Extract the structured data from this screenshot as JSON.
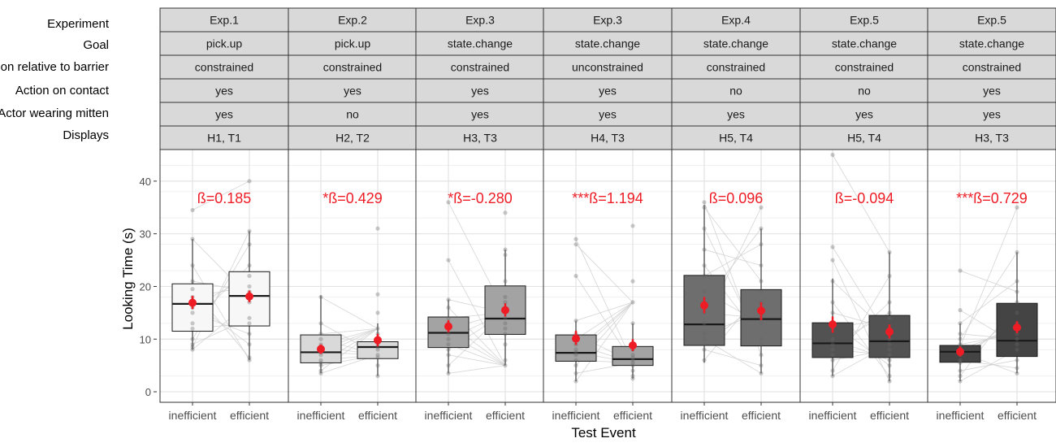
{
  "chart_data": {
    "type": "box",
    "ylabel": "Looking Time (s)",
    "xlabel": "Test Event",
    "ylim": [
      -2,
      46
    ],
    "yticks": [
      0,
      10,
      20,
      30,
      40
    ],
    "categories": [
      "inefficient",
      "efficient"
    ],
    "row_labels": [
      "Experiment",
      "Goal",
      "Action relative to barrier",
      "Action on contact",
      "Actor wearing mitten",
      "Displays"
    ],
    "accent_color": "#ee1c25",
    "panels": [
      {
        "strips": [
          "Exp.1",
          "pick.up",
          "constrained",
          "yes",
          "yes",
          "H1, T1"
        ],
        "annotation": "ß=0.185",
        "fill": "#f7f7f7",
        "boxes": [
          {
            "category": "inefficient",
            "q1": 11.5,
            "median": 16.7,
            "q3": 20.5,
            "whisker_low": 8,
            "whisker_high": 29,
            "mean": 16.9,
            "ci": [
              15.7,
              18.2
            ]
          },
          {
            "category": "efficient",
            "q1": 12.5,
            "median": 18.2,
            "q3": 22.8,
            "whisker_low": 6,
            "whisker_high": 30.5,
            "mean": 18.1,
            "ci": [
              17.0,
              19.2
            ]
          }
        ],
        "points": {
          "inefficient": [
            34.5,
            29,
            24,
            21,
            19.5,
            18,
            17,
            16,
            15,
            13,
            12,
            10,
            9,
            8.5,
            8
          ],
          "efficient": [
            40,
            30.5,
            28,
            24,
            22,
            20,
            19,
            18,
            17,
            14,
            13,
            11,
            9,
            6.5,
            6
          ]
        }
      },
      {
        "strips": [
          "Exp.2",
          "pick.up",
          "constrained",
          "yes",
          "no",
          "H2, T2"
        ],
        "annotation": "*ß=0.429",
        "fill": "#d9d9d9",
        "boxes": [
          {
            "category": "inefficient",
            "q1": 5.5,
            "median": 7.5,
            "q3": 10.8,
            "whisker_low": 3.5,
            "whisker_high": 18.3,
            "mean": 8.1,
            "ci": [
              7.2,
              9.0
            ]
          },
          {
            "category": "efficient",
            "q1": 6.3,
            "median": 8.5,
            "q3": 9.5,
            "whisker_low": 3,
            "whisker_high": 13,
            "mean": 9.8,
            "ci": [
              8.6,
              11.0
            ]
          }
        ],
        "points": {
          "inefficient": [
            18,
            13,
            11,
            10,
            9,
            8.5,
            8,
            7.5,
            7,
            6,
            5.5,
            5,
            4,
            3.5
          ],
          "efficient": [
            31,
            18.5,
            15,
            12,
            11,
            10,
            9.5,
            9,
            8.5,
            8,
            7,
            6.5,
            5,
            3
          ]
        }
      },
      {
        "strips": [
          "Exp.3",
          "state.change",
          "constrained",
          "yes",
          "yes",
          "H3, T3"
        ],
        "annotation": "*ß=-0.280",
        "fill": "#a3a3a3",
        "boxes": [
          {
            "category": "inefficient",
            "q1": 8.4,
            "median": 11.2,
            "q3": 14.2,
            "whisker_low": 3.5,
            "whisker_high": 17.5,
            "mean": 12.4,
            "ci": [
              11.3,
              13.6
            ]
          },
          {
            "category": "efficient",
            "q1": 10.9,
            "median": 13.9,
            "q3": 20.1,
            "whisker_low": 5,
            "whisker_high": 27,
            "mean": 15.5,
            "ci": [
              14.3,
              16.8
            ]
          }
        ],
        "points": {
          "inefficient": [
            36,
            25,
            17.5,
            16,
            14,
            13,
            12,
            11,
            10,
            9,
            8,
            7,
            5,
            3.5
          ],
          "efficient": [
            34,
            27,
            26,
            21,
            18,
            17,
            15,
            14,
            13,
            12,
            11,
            9,
            6,
            5
          ]
        }
      },
      {
        "strips": [
          "Exp.3",
          "state.change",
          "unconstrained",
          "yes",
          "yes",
          "H4, T3"
        ],
        "annotation": "***ß=1.194",
        "fill": "#a3a3a3",
        "boxes": [
          {
            "category": "inefficient",
            "q1": 5.8,
            "median": 7.4,
            "q3": 10.8,
            "whisker_low": 2,
            "whisker_high": 13.5,
            "mean": 10.1,
            "ci": [
              8.9,
              11.6
            ]
          },
          {
            "category": "efficient",
            "q1": 5,
            "median": 6.2,
            "q3": 8.6,
            "whisker_low": 2.5,
            "whisker_high": 13,
            "mean": 8.8,
            "ci": [
              7.7,
              10.0
            ]
          }
        ],
        "points": {
          "inefficient": [
            29,
            28,
            22,
            13.5,
            11,
            10,
            9,
            8,
            7.5,
            7,
            6,
            5,
            3.5,
            2
          ],
          "efficient": [
            31.5,
            21,
            17,
            13,
            9,
            8,
            7,
            6.5,
            6,
            5.5,
            5,
            4,
            3,
            2.5
          ]
        }
      },
      {
        "strips": [
          "Exp.4",
          "state.change",
          "constrained",
          "no",
          "yes",
          "H5, T4"
        ],
        "annotation": "ß=0.096",
        "fill": "#6e6e6e",
        "boxes": [
          {
            "category": "inefficient",
            "q1": 8.8,
            "median": 12.8,
            "q3": 22.1,
            "whisker_low": 5.5,
            "whisker_high": 35.5,
            "mean": 16.4,
            "ci": [
              14.9,
              18.0
            ]
          },
          {
            "category": "efficient",
            "q1": 8.7,
            "median": 13.8,
            "q3": 19.4,
            "whisker_low": 3.5,
            "whisker_high": 31,
            "mean": 15.4,
            "ci": [
              13.6,
              17.0
            ]
          }
        ],
        "points": {
          "inefficient": [
            36,
            35,
            31,
            27,
            24,
            22,
            19,
            17,
            15,
            13,
            11,
            10,
            9,
            8,
            6
          ],
          "efficient": [
            35,
            31,
            28,
            24,
            21,
            19,
            17,
            15,
            14,
            13,
            10,
            9,
            7,
            5,
            3.5
          ]
        }
      },
      {
        "strips": [
          "Exp.5",
          "state.change",
          "constrained",
          "no",
          "yes",
          "H5, T4"
        ],
        "annotation": "ß=-0.094",
        "fill": "#525252",
        "boxes": [
          {
            "category": "inefficient",
            "q1": 6.5,
            "median": 9.2,
            "q3": 13.1,
            "whisker_low": 3,
            "whisker_high": 21.5,
            "mean": 12.8,
            "ci": [
              11.2,
              14.3
            ]
          },
          {
            "category": "efficient",
            "q1": 6.5,
            "median": 9.6,
            "q3": 14.5,
            "whisker_low": 2,
            "whisker_high": 26.5,
            "mean": 11.4,
            "ci": [
              10.1,
              12.8
            ]
          }
        ],
        "points": {
          "inefficient": [
            45,
            27.5,
            25,
            21,
            17,
            15,
            13,
            12,
            10,
            9,
            8,
            7,
            6,
            4,
            3
          ],
          "efficient": [
            26.5,
            22,
            17,
            15,
            14,
            12,
            11,
            10,
            9,
            8,
            7,
            6,
            5,
            3,
            2
          ]
        }
      },
      {
        "strips": [
          "Exp.5",
          "state.change",
          "constrained",
          "yes",
          "yes",
          "H3, T3"
        ],
        "annotation": "***ß=0.729",
        "fill": "#444444",
        "boxes": [
          {
            "category": "inefficient",
            "q1": 5.6,
            "median": 7.6,
            "q3": 8.8,
            "whisker_low": 2,
            "whisker_high": 13,
            "mean": 7.6,
            "ci": [
              6.7,
              8.6
            ]
          },
          {
            "category": "efficient",
            "q1": 6.7,
            "median": 9.7,
            "q3": 16.8,
            "whisker_low": 3.5,
            "whisker_high": 26.5,
            "mean": 12.2,
            "ci": [
              11.1,
              13.4
            ]
          }
        ],
        "points": {
          "inefficient": [
            23,
            15.5,
            13,
            11,
            10,
            9,
            8.5,
            8,
            7.5,
            7,
            6,
            5.5,
            4,
            3,
            2
          ],
          "efficient": [
            35,
            26.5,
            21,
            19,
            17,
            15,
            13,
            12,
            11,
            10,
            9,
            8,
            6,
            4.5,
            3.5
          ]
        }
      }
    ]
  }
}
